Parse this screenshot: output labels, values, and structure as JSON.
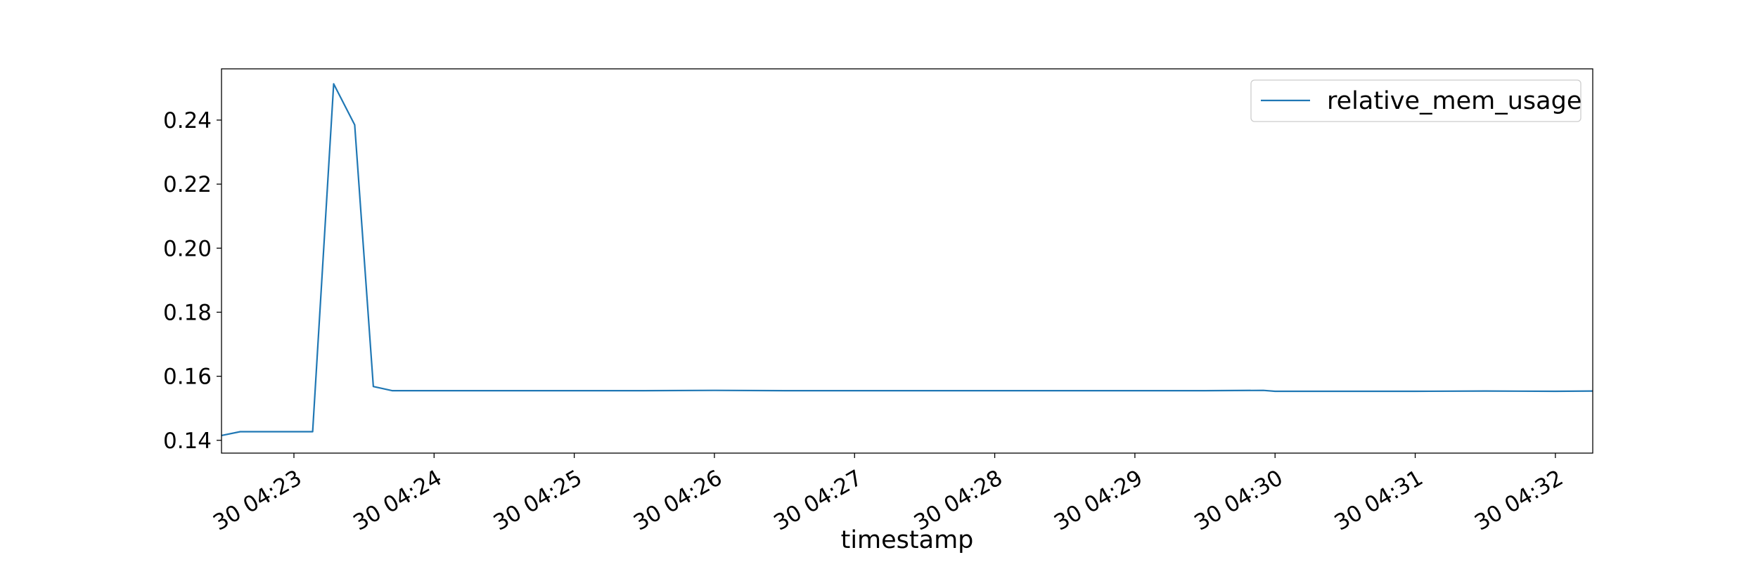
{
  "chart_data": {
    "type": "line",
    "title": "",
    "xlabel": "timestamp",
    "ylabel": "",
    "grid": false,
    "legend_position": "top-right",
    "series_color": "#1f77b4",
    "x_range": [
      "04:22:29",
      "04:32:16"
    ],
    "xlim": [
      0,
      587
    ],
    "ylim": [
      0.136,
      0.256
    ],
    "x_ticks": [
      {
        "t": 31,
        "label": "30 04:23"
      },
      {
        "t": 91,
        "label": "30 04:24"
      },
      {
        "t": 151,
        "label": "30 04:25"
      },
      {
        "t": 211,
        "label": "30 04:26"
      },
      {
        "t": 271,
        "label": "30 04:27"
      },
      {
        "t": 331,
        "label": "30 04:28"
      },
      {
        "t": 391,
        "label": "30 04:29"
      },
      {
        "t": 451,
        "label": "30 04:30"
      },
      {
        "t": 511,
        "label": "30 04:31"
      },
      {
        "t": 571,
        "label": "30 04:32"
      }
    ],
    "y_ticks": [
      {
        "v": 0.14,
        "label": "0.14"
      },
      {
        "v": 0.16,
        "label": "0.16"
      },
      {
        "v": 0.18,
        "label": "0.18"
      },
      {
        "v": 0.2,
        "label": "0.20"
      },
      {
        "v": 0.22,
        "label": "0.22"
      },
      {
        "v": 0.24,
        "label": "0.24"
      }
    ],
    "series": [
      {
        "name": "relative_mem_usage",
        "x": [
          "04:22:29",
          "04:22:37",
          "04:23:08",
          "04:23:17",
          "04:23:26",
          "04:23:34",
          "04:23:42",
          "04:24:30",
          "04:25:30",
          "04:26:00",
          "04:26:30",
          "04:27:00",
          "04:27:30",
          "04:28:00",
          "04:28:30",
          "04:29:00",
          "04:29:30",
          "04:29:55",
          "04:30:00",
          "04:30:30",
          "04:31:00",
          "04:31:30",
          "04:32:00",
          "04:32:16"
        ],
        "y": [
          0.1415,
          0.1427,
          0.1427,
          0.2513,
          0.2385,
          0.1568,
          0.1555,
          0.1555,
          0.1555,
          0.1556,
          0.1555,
          0.1555,
          0.1555,
          0.1555,
          0.1555,
          0.1555,
          0.1555,
          0.1556,
          0.1553,
          0.1553,
          0.1553,
          0.1554,
          0.1553,
          0.1554
        ]
      }
    ]
  }
}
